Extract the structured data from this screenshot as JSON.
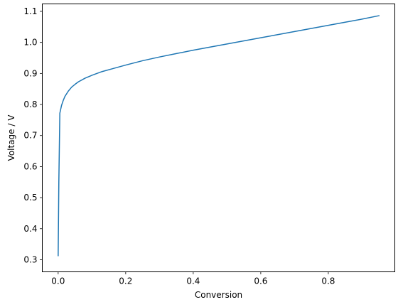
{
  "chart_data": {
    "type": "line",
    "title": "",
    "xlabel": "Conversion",
    "ylabel": "Voltage / V",
    "xlim": [
      -0.047,
      0.997
    ],
    "ylim": [
      0.261,
      1.124
    ],
    "xticks": [
      0.0,
      0.2,
      0.4,
      0.6,
      0.8
    ],
    "xtick_labels": [
      "0.0",
      "0.2",
      "0.4",
      "0.6",
      "0.8"
    ],
    "yticks": [
      0.3,
      0.4,
      0.5,
      0.6,
      0.7,
      0.8,
      0.9,
      1.0,
      1.1
    ],
    "ytick_labels": [
      "0.3",
      "0.4",
      "0.5",
      "0.6",
      "0.7",
      "0.8",
      "0.9",
      "1.0",
      "1.1"
    ],
    "grid": false,
    "legend": false,
    "series": [
      {
        "color": "#1f77b4",
        "x": [
          0.0,
          0.002,
          0.005,
          0.01,
          0.015,
          0.02,
          0.03,
          0.04,
          0.05,
          0.06,
          0.08,
          0.1,
          0.13,
          0.16,
          0.2,
          0.25,
          0.3,
          0.35,
          0.4,
          0.45,
          0.5,
          0.55,
          0.6,
          0.65,
          0.7,
          0.75,
          0.8,
          0.85,
          0.9,
          0.95
        ],
        "y": [
          0.313,
          0.55,
          0.772,
          0.797,
          0.813,
          0.826,
          0.843,
          0.856,
          0.865,
          0.873,
          0.885,
          0.894,
          0.906,
          0.915,
          0.927,
          0.941,
          0.953,
          0.964,
          0.975,
          0.985,
          0.995,
          1.005,
          1.015,
          1.025,
          1.035,
          1.045,
          1.055,
          1.065,
          1.075,
          1.086
        ]
      }
    ]
  }
}
